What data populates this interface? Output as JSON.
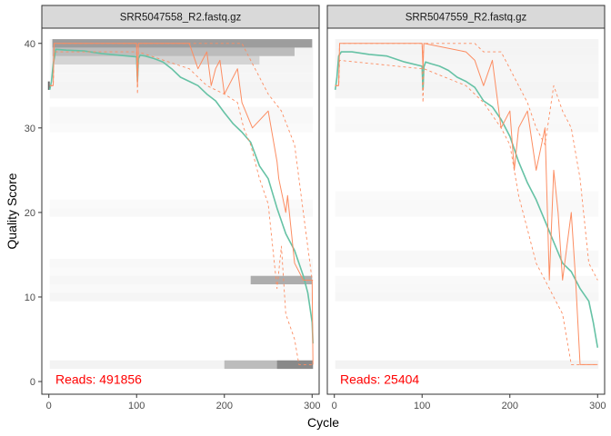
{
  "figure": {
    "xlabel": "Cycle",
    "ylabel": "Quality Score",
    "xticks": [
      0,
      100,
      200,
      300
    ],
    "yticks": [
      0,
      10,
      20,
      30,
      40
    ],
    "xlim": [
      -8,
      308
    ],
    "ylim": [
      -1.5,
      41.8
    ]
  },
  "colors": {
    "mean_line": "#66c2a5",
    "quartile_lines": "#fc8d62",
    "reads_label": "#ff0000",
    "strip_fill": "#d9d9d9",
    "heat_light": "#f2f2f2",
    "heat_dark": "#000000"
  },
  "chart_data": [
    {
      "type": "line",
      "facet": "SRR5047558_R2.fastq.gz",
      "reads_label": "Reads:  491856",
      "x_max": 301,
      "series": [
        {
          "name": "Mean",
          "x": [
            1,
            3,
            5,
            8,
            20,
            40,
            60,
            80,
            100,
            101,
            102,
            104,
            110,
            120,
            130,
            140,
            150,
            160,
            170,
            180,
            190,
            200,
            210,
            220,
            230,
            240,
            250,
            260,
            270,
            280,
            290,
            295,
            300,
            301
          ],
          "values": [
            34.5,
            35.5,
            37.5,
            39.3,
            39.2,
            39.1,
            38.8,
            38.6,
            38.4,
            35.5,
            38.2,
            38.6,
            38.5,
            38.2,
            37.8,
            37.0,
            36.0,
            35.5,
            35.0,
            34.0,
            33.2,
            31.8,
            30.5,
            29.5,
            28.3,
            25.5,
            24.0,
            20.5,
            17.5,
            15.5,
            12.5,
            10.5,
            7.0,
            4.5
          ]
        },
        {
          "name": "Median",
          "x": [
            1,
            5,
            6,
            100,
            101,
            102,
            160,
            170,
            175,
            180,
            185,
            190,
            195,
            200,
            215,
            220,
            232,
            250,
            260,
            262,
            270,
            272,
            280,
            290,
            300,
            301
          ],
          "values": [
            35.0,
            35.0,
            40.0,
            40.0,
            35.0,
            40.0,
            40.0,
            37.0,
            38.0,
            39.0,
            35.0,
            37.0,
            38.0,
            34.0,
            37.0,
            33.0,
            30.0,
            32.0,
            26.0,
            24.0,
            20.0,
            22.0,
            14.0,
            12.0,
            12.0,
            2.0
          ]
        },
        {
          "name": "Q25",
          "x": [
            1,
            5,
            6,
            100,
            101,
            102,
            160,
            180,
            200,
            215,
            222,
            230,
            240,
            250,
            255,
            260,
            265,
            270,
            280,
            285,
            290,
            300,
            301
          ],
          "values": [
            35.0,
            35.0,
            39.0,
            39.0,
            34.0,
            39.0,
            37.0,
            35.0,
            34.0,
            33.0,
            30.0,
            28.0,
            24.0,
            21.0,
            16.0,
            11.0,
            16.0,
            8.0,
            5.0,
            2.0,
            2.0,
            2.0,
            2.0
          ]
        },
        {
          "name": "Q75",
          "x": [
            1,
            5,
            6,
            100,
            101,
            102,
            220,
            230,
            240,
            250,
            265,
            280,
            290,
            300,
            301
          ],
          "values": [
            35.0,
            35.0,
            40.0,
            40.0,
            36.0,
            40.0,
            40.0,
            38.0,
            36.0,
            34.0,
            32.0,
            28.0,
            20.0,
            12.0,
            12.0
          ]
        }
      ]
    },
    {
      "type": "line",
      "facet": "SRR5047559_R2.fastq.gz",
      "reads_label": "Reads:  25404",
      "x_max": 301,
      "series": [
        {
          "name": "Mean",
          "x": [
            1,
            3,
            5,
            8,
            20,
            40,
            60,
            80,
            100,
            101,
            102,
            104,
            110,
            120,
            130,
            140,
            150,
            160,
            170,
            180,
            190,
            200,
            210,
            220,
            230,
            240,
            250,
            260,
            270,
            280,
            290,
            295,
            300
          ],
          "values": [
            34.5,
            36.0,
            38.5,
            39.0,
            39.0,
            38.7,
            38.5,
            37.8,
            37.3,
            34.5,
            37.2,
            37.8,
            37.6,
            37.3,
            36.8,
            36.0,
            35.5,
            34.8,
            33.2,
            32.5,
            31.0,
            29.0,
            26.0,
            23.5,
            21.5,
            19.0,
            16.5,
            14.0,
            13.0,
            11.0,
            9.5,
            7.0,
            4.0
          ]
        },
        {
          "name": "Median",
          "x": [
            1,
            5,
            6,
            100,
            101,
            102,
            150,
            160,
            170,
            180,
            190,
            200,
            205,
            210,
            220,
            230,
            240,
            245,
            250,
            255,
            260,
            270,
            275,
            280,
            300
          ],
          "values": [
            35.0,
            35.0,
            40.0,
            40.0,
            37.0,
            40.0,
            39.0,
            38.0,
            35.0,
            38.0,
            30.0,
            32.0,
            25.0,
            30.0,
            32.0,
            25.0,
            30.0,
            12.0,
            25.0,
            20.0,
            12.0,
            20.0,
            12.0,
            2.0,
            2.0
          ]
        },
        {
          "name": "Q25",
          "x": [
            1,
            5,
            6,
            100,
            101,
            102,
            150,
            170,
            190,
            200,
            210,
            220,
            230,
            240,
            250,
            260,
            270,
            300
          ],
          "values": [
            35.0,
            35.0,
            38.0,
            37.0,
            33.0,
            37.0,
            35.0,
            33.0,
            30.0,
            28.0,
            22.0,
            18.0,
            14.0,
            12.0,
            10.0,
            8.0,
            2.0,
            2.0
          ]
        },
        {
          "name": "Q75",
          "x": [
            1,
            5,
            6,
            100,
            101,
            102,
            160,
            170,
            190,
            200,
            210,
            220,
            230,
            240,
            250,
            260,
            270,
            280,
            290,
            300
          ],
          "values": [
            35.0,
            35.0,
            40.0,
            40.0,
            38.0,
            40.0,
            40.0,
            39.0,
            39.0,
            37.0,
            35.0,
            33.0,
            30.0,
            28.0,
            35.0,
            32.0,
            30.0,
            24.0,
            14.0,
            12.0
          ]
        }
      ]
    }
  ]
}
